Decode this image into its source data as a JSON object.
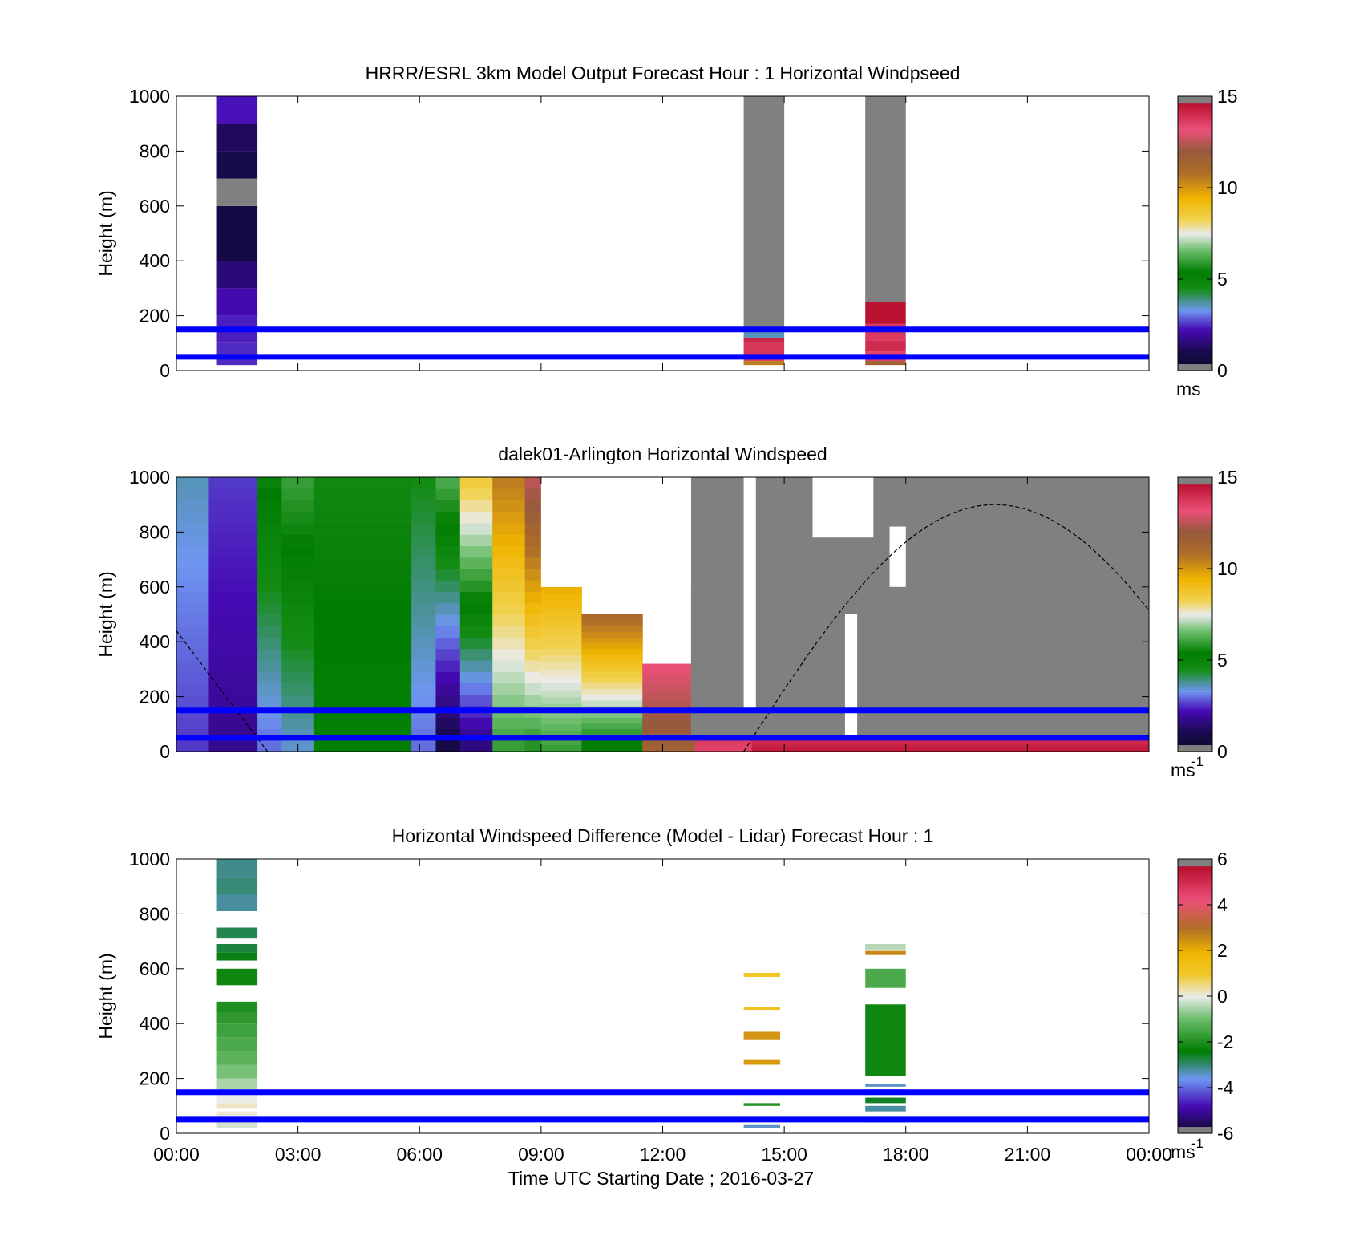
{
  "figure": {
    "time_ticks": [
      "00:00",
      "03:00",
      "06:00",
      "09:00",
      "12:00",
      "15:00",
      "18:00",
      "21:00",
      "00:00"
    ],
    "xlabel": "Time UTC  Starting Date ; 2016-03-27",
    "ylabel": "Height (m)",
    "blue_line_heights": [
      150,
      50
    ],
    "blue_line_color": "#0000ff",
    "nodata_color": "#808080"
  },
  "chart_data": [
    {
      "type": "heatmap",
      "title": "HRRR/ESRL 3km Model Output   Forecast Hour : 1 Horizontal Windpseed",
      "xlabel": "",
      "ylabel": "Height (m)",
      "xlim_hours": [
        0,
        24
      ],
      "ylim": [
        0,
        1000
      ],
      "yticks": [
        0,
        200,
        400,
        600,
        800,
        1000
      ],
      "colorbar": {
        "min": 0,
        "max": 15,
        "ticks": [
          0,
          5,
          10,
          15
        ],
        "unit": "ms",
        "unit_exp": ""
      },
      "columns": [
        {
          "t0": 1.0,
          "t1": 2.0,
          "cells": [
            {
              "z0": 20,
              "z1": 100,
              "v": 2.5
            },
            {
              "z0": 100,
              "z1": 200,
              "v": 2.4
            },
            {
              "z0": 200,
              "z1": 300,
              "v": 2.2
            },
            {
              "z0": 300,
              "z1": 400,
              "v": 1.5
            },
            {
              "z0": 400,
              "z1": 600,
              "v": 0.8
            },
            {
              "z0": 600,
              "z1": 700,
              "v": null
            },
            {
              "z0": 700,
              "z1": 800,
              "v": 0.9
            },
            {
              "z0": 800,
              "z1": 900,
              "v": 1.2
            },
            {
              "z0": 900,
              "z1": 1000,
              "v": 2.3
            }
          ]
        },
        {
          "t0": 14.0,
          "t1": 15.0,
          "cells": [
            {
              "z0": 20,
              "z1": 35,
              "v": 10.5
            },
            {
              "z0": 35,
              "z1": 60,
              "v": 13.5
            },
            {
              "z0": 60,
              "z1": 100,
              "v": 13.8
            },
            {
              "z0": 100,
              "z1": 120,
              "v": 14.2
            },
            {
              "z0": 120,
              "z1": 140,
              "v": 3.6
            },
            {
              "z0": 140,
              "z1": 1000,
              "v": null
            }
          ]
        },
        {
          "t0": 17.0,
          "t1": 18.0,
          "cells": [
            {
              "z0": 20,
              "z1": 35,
              "v": 11.5
            },
            {
              "z0": 35,
              "z1": 70,
              "v": 13.5
            },
            {
              "z0": 70,
              "z1": 110,
              "v": 14.0
            },
            {
              "z0": 110,
              "z1": 170,
              "v": 13.7
            },
            {
              "z0": 170,
              "z1": 250,
              "v": 14.6
            },
            {
              "z0": 250,
              "z1": 1000,
              "v": null
            }
          ]
        }
      ]
    },
    {
      "type": "heatmap",
      "title": "dalek01-Arlington  Horizontal Windspeed",
      "xlabel": "",
      "ylabel": "Height (m)",
      "xlim_hours": [
        0,
        24
      ],
      "ylim": [
        0,
        1000
      ],
      "yticks": [
        0,
        200,
        400,
        600,
        800,
        1000
      ],
      "colorbar": {
        "min": 0,
        "max": 15,
        "ticks": [
          0,
          5,
          10,
          15
        ],
        "unit": "ms",
        "unit_exp": "-1"
      },
      "regions": [
        {
          "t0": 0.0,
          "t1": 0.8,
          "ztop": 1000,
          "v_low": 2.6,
          "v_high": 3.6
        },
        {
          "t0": 0.8,
          "t1": 2.0,
          "ztop": 1000,
          "v_low": 1.8,
          "v_high": 2.6
        },
        {
          "t0": 2.0,
          "t1": 2.6,
          "ztop": 1000,
          "v_low": 3.0,
          "v_high": 5.5
        },
        {
          "t0": 2.6,
          "t1": 3.4,
          "ztop": 1000,
          "v_low": 3.5,
          "v_high": 6.0
        },
        {
          "t0": 3.4,
          "t1": 5.8,
          "ztop": 1000,
          "v_low": 5.2,
          "v_high": 5.6
        },
        {
          "t0": 5.8,
          "t1": 6.4,
          "ztop": 1000,
          "v_low": 3.0,
          "v_high": 4.5
        },
        {
          "t0": 6.4,
          "t1": 7.0,
          "ztop": 1000,
          "v_low": 0.8,
          "v_high": 6.2
        },
        {
          "t0": 7.0,
          "t1": 7.8,
          "ztop": 1000,
          "v_low": 1.6,
          "v_high": 8.5
        },
        {
          "t0": 7.8,
          "t1": 8.6,
          "ztop": 1000,
          "v_low": 6.0,
          "v_high": 10.5
        },
        {
          "t0": 8.6,
          "t1": 9.0,
          "ztop": 1000,
          "v_low": 5.8,
          "v_high": 12.5
        },
        {
          "t0": 9.0,
          "t1": 10.0,
          "ztop": 600,
          "v_low": 6.0,
          "v_high": 9.5
        },
        {
          "t0": 10.0,
          "t1": 11.5,
          "ztop": 500,
          "v_low": 5.2,
          "v_high": 11.0
        },
        {
          "t0": 11.5,
          "t1": 12.8,
          "ztop": 320,
          "v_low": 11.5,
          "v_high": 13.2
        },
        {
          "t0": 12.8,
          "t1": 14.2,
          "ztop": 180,
          "v_low": 13.5,
          "v_high": 14.2
        },
        {
          "t0": 14.2,
          "t1": 24.0,
          "ztop": 60,
          "v_low": 14.5,
          "v_high": 13.8
        }
      ],
      "gray_areas": [
        {
          "t0": 12.7,
          "t1": 24.0,
          "z0": 60,
          "z1": 1000
        }
      ],
      "white_gaps": [
        {
          "t0": 9.0,
          "t1": 12.7,
          "z0": 600,
          "z1": 1000
        },
        {
          "t0": 14.0,
          "t1": 14.3,
          "z0": 150,
          "z1": 1000
        },
        {
          "t0": 16.5,
          "t1": 16.8,
          "z0": 50,
          "z1": 500
        },
        {
          "t0": 17.6,
          "t1": 18.0,
          "z0": 600,
          "z1": 820
        },
        {
          "t0": 15.7,
          "t1": 17.2,
          "z0": 780,
          "z1": 1000
        }
      ],
      "sun_curve": {
        "color": "#000000",
        "segments": [
          {
            "t0": 0.0,
            "t1": 2.25,
            "z0": 440,
            "z1": 0
          },
          {
            "t0": 14.0,
            "t1": 24.0,
            "zpeak": 900,
            "tpeak": 20.2
          }
        ]
      }
    },
    {
      "type": "heatmap",
      "title": "Horizontal Windspeed Difference (Model - Lidar) Forecast Hour : 1",
      "xlabel": "Time UTC  Starting Date ; 2016-03-27",
      "ylabel": "Height (m)",
      "xlim_hours": [
        0,
        24
      ],
      "ylim": [
        0,
        1000
      ],
      "yticks": [
        0,
        200,
        400,
        600,
        800,
        1000
      ],
      "colorbar": {
        "min": -6,
        "max": 6,
        "ticks": [
          -6,
          -4,
          -2,
          0,
          2,
          4,
          6
        ],
        "unit": "ms",
        "unit_exp": "-1"
      },
      "columns": [
        {
          "t0": 1.0,
          "t1": 2.0,
          "cells": [
            {
              "z0": 20,
              "z1": 40,
              "v": -0.2
            },
            {
              "z0": 60,
              "z1": 80,
              "v": 0.1
            },
            {
              "z0": 90,
              "z1": 110,
              "v": 0.2
            },
            {
              "z0": 110,
              "z1": 140,
              "v": 0.0
            },
            {
              "z0": 160,
              "z1": 200,
              "v": -0.5
            },
            {
              "z0": 200,
              "z1": 250,
              "v": -0.9
            },
            {
              "z0": 250,
              "z1": 300,
              "v": -1.2
            },
            {
              "z0": 300,
              "z1": 350,
              "v": -1.4
            },
            {
              "z0": 350,
              "z1": 400,
              "v": -1.6
            },
            {
              "z0": 400,
              "z1": 440,
              "v": -1.8
            },
            {
              "z0": 440,
              "z1": 480,
              "v": -2.0
            },
            {
              "z0": 540,
              "z1": 600,
              "v": -2.2
            },
            {
              "z0": 630,
              "z1": 660,
              "v": -2.5
            },
            {
              "z0": 660,
              "z1": 690,
              "v": -2.7
            },
            {
              "z0": 710,
              "z1": 750,
              "v": -2.8
            },
            {
              "z0": 810,
              "z1": 870,
              "v": -3.2
            },
            {
              "z0": 870,
              "z1": 930,
              "v": -3.0
            },
            {
              "z0": 930,
              "z1": 1000,
              "v": -3.1
            }
          ]
        },
        {
          "t0": 14.0,
          "t1": 14.9,
          "cells": [
            {
              "z0": 20,
              "z1": 30,
              "v": -3.4
            },
            {
              "z0": 100,
              "z1": 110,
              "v": -2.0
            },
            {
              "z0": 250,
              "z1": 270,
              "v": 2.3
            },
            {
              "z0": 340,
              "z1": 370,
              "v": 2.4
            },
            {
              "z0": 450,
              "z1": 460,
              "v": 1.2
            },
            {
              "z0": 570,
              "z1": 585,
              "v": 1.0
            }
          ]
        },
        {
          "t0": 17.0,
          "t1": 18.0,
          "cells": [
            {
              "z0": 40,
              "z1": 60,
              "v": -2.2
            },
            {
              "z0": 80,
              "z1": 100,
              "v": -3.2
            },
            {
              "z0": 110,
              "z1": 130,
              "v": -2.6
            },
            {
              "z0": 140,
              "z1": 160,
              "v": -3.0
            },
            {
              "z0": 170,
              "z1": 180,
              "v": -3.4
            },
            {
              "z0": 210,
              "z1": 470,
              "v": -2.2
            },
            {
              "z0": 530,
              "z1": 600,
              "v": -1.4
            },
            {
              "z0": 650,
              "z1": 665,
              "v": 2.6
            },
            {
              "z0": 670,
              "z1": 690,
              "v": -0.4
            }
          ]
        }
      ]
    }
  ]
}
